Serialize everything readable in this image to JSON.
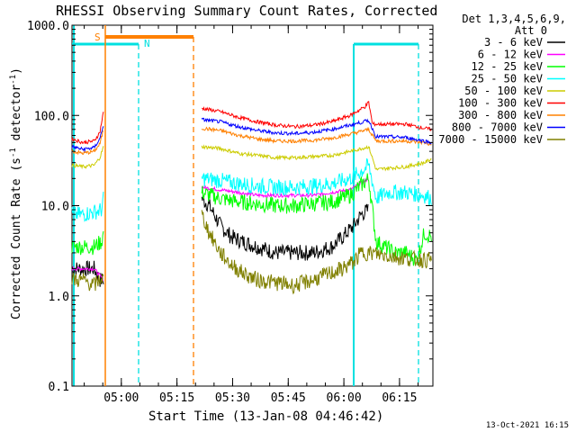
{
  "chart_data": {
    "type": "line",
    "title": "RHESSI Observing Summary Count Rates, Corrected",
    "xlabel": "Start Time (13-Jan-08 04:46:42)",
    "ylabel_main": "Corrected Count Rate (s",
    "ylabel_sup1": "-1",
    "ylabel_mid": " detector",
    "ylabel_sup2": "-1",
    "ylabel_end": ")",
    "yscale": "log",
    "ylim": [
      0.1,
      1000
    ],
    "xlim_minutes": [
      0,
      97.3
    ],
    "x_ticks": [
      {
        "label": "05:00",
        "minute": 13.3
      },
      {
        "label": "05:15",
        "minute": 28.3
      },
      {
        "label": "05:30",
        "minute": 43.3
      },
      {
        "label": "05:45",
        "minute": 58.3
      },
      {
        "label": "06:00",
        "minute": 73.3
      },
      {
        "label": "06:15",
        "minute": 88.3
      }
    ],
    "y_ticks": [
      {
        "label": "1000.0",
        "value": 1000
      },
      {
        "label": "100.0",
        "value": 100
      },
      {
        "label": "10.0",
        "value": 10
      },
      {
        "label": "1.0",
        "value": 1
      },
      {
        "label": "0.1",
        "value": 0.1
      }
    ],
    "legend": {
      "header_line1": "Det 1,3,4,5,6,9,",
      "header_line2": "Att 0",
      "placement": "right"
    },
    "series": [
      {
        "name": "3 - 6 keV",
        "color": "#000000",
        "seg1": [
          [
            0,
            2
          ],
          [
            3,
            2
          ],
          [
            6,
            2
          ],
          [
            7.5,
            1.5
          ],
          [
            8.5,
            1.5
          ]
        ],
        "seg2": [
          [
            35,
            12
          ],
          [
            37,
            10
          ],
          [
            40,
            6
          ],
          [
            43,
            4.5
          ],
          [
            46,
            4
          ],
          [
            50,
            3.5
          ],
          [
            55,
            3
          ],
          [
            60,
            3
          ],
          [
            65,
            3
          ],
          [
            70,
            3.5
          ],
          [
            73,
            4.5
          ],
          [
            76,
            6
          ],
          [
            78,
            8
          ],
          [
            80,
            9
          ]
        ]
      },
      {
        "name": "6 - 12 keV",
        "color": "#ff00ff",
        "seg1": [
          [
            0,
            2
          ],
          [
            3,
            2
          ],
          [
            6,
            2
          ],
          [
            8.5,
            1.5
          ]
        ],
        "seg2": [
          [
            35,
            16
          ],
          [
            40,
            15
          ],
          [
            45,
            14
          ],
          [
            50,
            13
          ],
          [
            55,
            13
          ],
          [
            60,
            13
          ],
          [
            65,
            13
          ],
          [
            70,
            14
          ],
          [
            75,
            15
          ],
          [
            80,
            20
          ]
        ]
      },
      {
        "name": "12 - 25 keV",
        "color": "#00ff00",
        "seg1": [
          [
            0,
            3.5
          ],
          [
            3,
            3.5
          ],
          [
            6,
            3.5
          ],
          [
            8,
            4
          ],
          [
            8.5,
            5
          ]
        ],
        "seg2": [
          [
            35,
            14
          ],
          [
            40,
            12
          ],
          [
            45,
            11
          ],
          [
            50,
            10.5
          ],
          [
            55,
            10
          ],
          [
            60,
            10
          ],
          [
            65,
            10.5
          ],
          [
            70,
            11
          ],
          [
            75,
            13
          ],
          [
            78,
            17
          ],
          [
            80,
            20
          ],
          [
            82,
            4
          ],
          [
            87,
            3
          ],
          [
            90,
            3
          ],
          [
            93,
            2.5
          ],
          [
            95,
            5
          ],
          [
            97,
            4.5
          ]
        ]
      },
      {
        "name": "25 - 50 keV",
        "color": "#00ffff",
        "seg1": [
          [
            0,
            8
          ],
          [
            3,
            8
          ],
          [
            6,
            8.5
          ],
          [
            8,
            9
          ],
          [
            8.5,
            12
          ]
        ],
        "seg2": [
          [
            35,
            20
          ],
          [
            40,
            19
          ],
          [
            45,
            17.5
          ],
          [
            50,
            16.5
          ],
          [
            55,
            16
          ],
          [
            60,
            16
          ],
          [
            65,
            16.5
          ],
          [
            70,
            17.5
          ],
          [
            75,
            20
          ],
          [
            78,
            24
          ],
          [
            80,
            28
          ],
          [
            82,
            12
          ],
          [
            85,
            14
          ],
          [
            90,
            14
          ],
          [
            95,
            13
          ],
          [
            97,
            12
          ]
        ]
      },
      {
        "name": "50 - 100 keV",
        "color": "#cccc00",
        "seg1": [
          [
            0,
            28
          ],
          [
            3,
            27
          ],
          [
            6,
            28
          ],
          [
            7.5,
            34
          ],
          [
            8.5,
            45
          ]
        ],
        "seg2": [
          [
            35,
            45
          ],
          [
            40,
            43
          ],
          [
            45,
            38
          ],
          [
            50,
            36
          ],
          [
            55,
            34
          ],
          [
            60,
            34
          ],
          [
            65,
            35
          ],
          [
            70,
            36
          ],
          [
            75,
            40
          ],
          [
            80,
            45
          ],
          [
            82,
            25
          ],
          [
            85,
            26
          ],
          [
            90,
            27
          ],
          [
            95,
            30
          ],
          [
            97,
            33
          ]
        ]
      },
      {
        "name": "100 - 300 keV",
        "color": "#ff0000",
        "seg1": [
          [
            0,
            55
          ],
          [
            3,
            50
          ],
          [
            6,
            52
          ],
          [
            7.5,
            65
          ],
          [
            8.5,
            110
          ]
        ],
        "seg2": [
          [
            35,
            120
          ],
          [
            40,
            110
          ],
          [
            45,
            95
          ],
          [
            50,
            85
          ],
          [
            55,
            78
          ],
          [
            60,
            75
          ],
          [
            65,
            78
          ],
          [
            70,
            85
          ],
          [
            75,
            100
          ],
          [
            79,
            125
          ],
          [
            80,
            140
          ],
          [
            81,
            80
          ],
          [
            85,
            80
          ],
          [
            90,
            80
          ],
          [
            95,
            72
          ],
          [
            97,
            70
          ]
        ]
      },
      {
        "name": "300 - 800 keV",
        "color": "#ff8000",
        "seg1": [
          [
            0,
            40
          ],
          [
            3,
            38
          ],
          [
            6,
            40
          ],
          [
            7.5,
            48
          ],
          [
            8.5,
            70
          ]
        ],
        "seg2": [
          [
            35,
            72
          ],
          [
            40,
            68
          ],
          [
            45,
            60
          ],
          [
            50,
            55
          ],
          [
            55,
            52
          ],
          [
            60,
            52
          ],
          [
            65,
            53
          ],
          [
            70,
            56
          ],
          [
            75,
            62
          ],
          [
            80,
            70
          ],
          [
            82,
            52
          ],
          [
            85,
            52
          ],
          [
            90,
            52
          ],
          [
            95,
            50
          ],
          [
            97,
            47
          ]
        ]
      },
      {
        "name": "800 - 7000 keV",
        "color": "#0000ff",
        "seg1": [
          [
            0,
            45
          ],
          [
            3,
            42
          ],
          [
            6,
            44
          ],
          [
            7.5,
            55
          ],
          [
            8.5,
            80
          ]
        ],
        "seg2": [
          [
            35,
            90
          ],
          [
            40,
            85
          ],
          [
            45,
            75
          ],
          [
            50,
            68
          ],
          [
            55,
            64
          ],
          [
            60,
            63
          ],
          [
            65,
            65
          ],
          [
            70,
            70
          ],
          [
            75,
            78
          ],
          [
            80,
            88
          ],
          [
            82,
            58
          ],
          [
            85,
            58
          ],
          [
            90,
            57
          ],
          [
            95,
            52
          ],
          [
            97,
            50
          ]
        ]
      },
      {
        "name": "7000 - 15000 keV",
        "color": "#808000",
        "seg1": [
          [
            0,
            1.5
          ],
          [
            3,
            1.5
          ],
          [
            6,
            1.3
          ],
          [
            8,
            1.6
          ],
          [
            8.5,
            1.5
          ]
        ],
        "seg2": [
          [
            35,
            8
          ],
          [
            37,
            5
          ],
          [
            40,
            3
          ],
          [
            43,
            2.2
          ],
          [
            46,
            1.8
          ],
          [
            50,
            1.5
          ],
          [
            55,
            1.4
          ],
          [
            60,
            1.3
          ],
          [
            65,
            1.5
          ],
          [
            70,
            1.8
          ],
          [
            73,
            2
          ],
          [
            76,
            2.4
          ],
          [
            78,
            3
          ],
          [
            80,
            3
          ],
          [
            85,
            2.8
          ],
          [
            90,
            2.6
          ],
          [
            95,
            2.5
          ],
          [
            97,
            2.5
          ]
        ]
      }
    ],
    "attenuator_markers": [
      {
        "label": "S",
        "color": "#ff8000"
      },
      {
        "label": "N",
        "color": "#00e0e0"
      }
    ]
  },
  "footer": {
    "timestamp": "13-Oct-2021 16:15"
  }
}
